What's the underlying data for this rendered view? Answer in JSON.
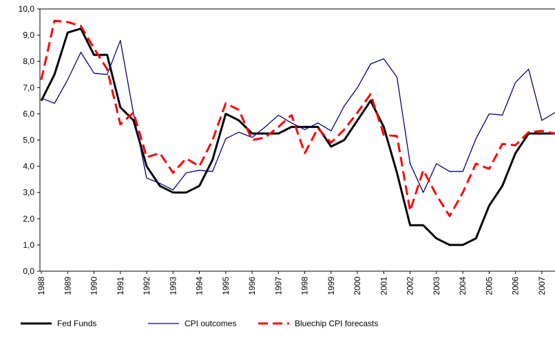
{
  "chart_data": {
    "type": "line",
    "categories": [
      "1988",
      null,
      "1989",
      null,
      "1990",
      null,
      "1991",
      null,
      "1992",
      null,
      "1993",
      null,
      "1994",
      null,
      "1995",
      null,
      "1996",
      null,
      "1997",
      null,
      "1998",
      null,
      "1999",
      null,
      "2000",
      null,
      "2001",
      null,
      "2002",
      null,
      "2003",
      null,
      "2004",
      null,
      "2005",
      null,
      "2006",
      null,
      "2007",
      null
    ],
    "ylim": [
      0,
      10
    ],
    "yticks": [
      {
        "value": 0,
        "label": "0,0"
      },
      {
        "value": 1,
        "label": "1,0"
      },
      {
        "value": 2,
        "label": "2,0"
      },
      {
        "value": 3,
        "label": "3,0"
      },
      {
        "value": 4,
        "label": "4,0"
      },
      {
        "value": 5,
        "label": "5,0"
      },
      {
        "value": 6,
        "label": "6,0"
      },
      {
        "value": 7,
        "label": "7,0"
      },
      {
        "value": 8,
        "label": "8,0"
      },
      {
        "value": 9,
        "label": "9,0"
      },
      {
        "value": 10,
        "label": "10,0"
      }
    ],
    "legend": "bottom",
    "series": [
      {
        "name": "Fed Funds",
        "color": "#000000",
        "dash": false,
        "width": 3,
        "values": [
          6.5,
          7.5,
          9.1,
          9.25,
          8.25,
          8.25,
          6.25,
          5.75,
          4.0,
          3.25,
          3.0,
          3.0,
          3.25,
          4.25,
          6.0,
          5.75,
          5.25,
          5.25,
          5.25,
          5.5,
          5.5,
          5.5,
          4.75,
          5.0,
          5.75,
          6.5,
          5.5,
          3.75,
          1.75,
          1.75,
          1.25,
          1.0,
          1.0,
          1.25,
          2.5,
          3.25,
          4.5,
          5.25,
          5.25,
          5.25
        ]
      },
      {
        "name": "CPI outcomes",
        "color": "#000080",
        "dash": false,
        "width": 1.3,
        "values": [
          6.6,
          6.4,
          7.3,
          8.35,
          7.55,
          7.5,
          8.8,
          6.0,
          3.55,
          3.35,
          3.1,
          3.75,
          3.85,
          3.8,
          5.05,
          5.3,
          5.1,
          5.5,
          5.95,
          5.65,
          5.4,
          5.65,
          5.35,
          6.3,
          7.0,
          7.9,
          8.1,
          7.4,
          4.1,
          3.0,
          4.1,
          3.8,
          3.8,
          5.05,
          6.0,
          5.95,
          7.2,
          7.7,
          5.75,
          6.05
        ]
      },
      {
        "name": "Bluechip CPI forecasts",
        "color": "#ff0000",
        "dash": true,
        "width": 3,
        "values": [
          7.3,
          9.55,
          9.5,
          9.35,
          8.5,
          7.7,
          5.6,
          6.05,
          4.35,
          4.5,
          3.75,
          4.3,
          4.0,
          5.0,
          6.4,
          6.15,
          5.0,
          5.1,
          5.5,
          5.95,
          4.5,
          5.45,
          4.9,
          5.4,
          6.05,
          6.75,
          5.2,
          5.15,
          2.3,
          3.85,
          2.9,
          2.1,
          3.0,
          4.1,
          3.9,
          4.85,
          4.8,
          5.3,
          5.35,
          5.25
        ]
      }
    ]
  }
}
